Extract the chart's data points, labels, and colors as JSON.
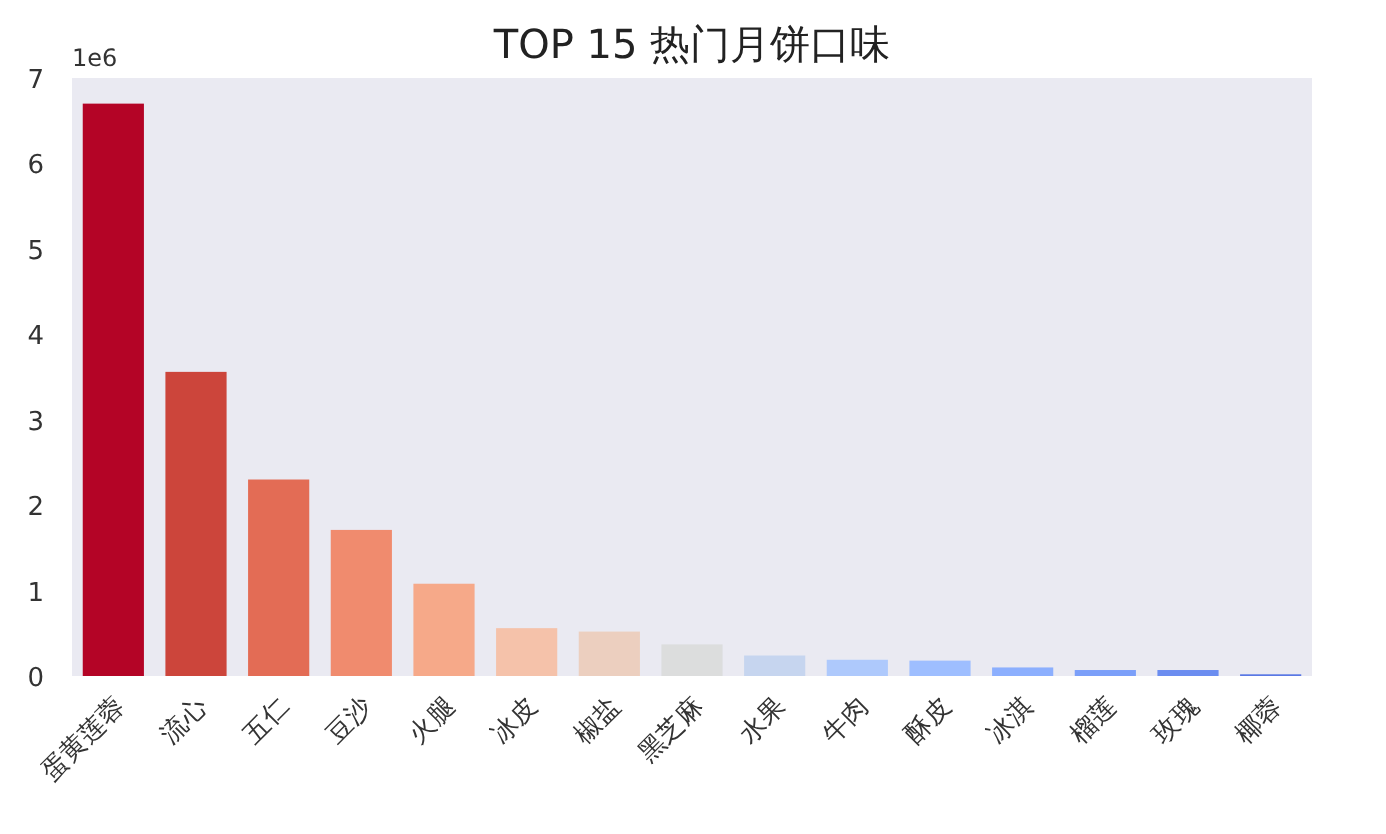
{
  "chart_data": {
    "type": "bar",
    "title": "TOP 15 热门月饼口味",
    "categories": [
      "蛋黄莲蓉",
      "流心",
      "五仁",
      "豆沙",
      "火腿",
      "冰皮",
      "椒盐",
      "黑芝麻",
      "水果",
      "牛肉",
      "酥皮",
      "冰淇",
      "榴莲",
      "玫瑰",
      "椰蓉"
    ],
    "values": [
      6.7,
      3.56,
      2.3,
      1.71,
      1.08,
      0.56,
      0.52,
      0.37,
      0.24,
      0.19,
      0.18,
      0.1,
      0.07,
      0.07,
      0.02
    ],
    "colors": [
      "#b40426",
      "#cc453b",
      "#e36c55",
      "#f08b6e",
      "#f6a989",
      "#f5c2aa",
      "#eccfbf",
      "#dcdddd",
      "#c6d5ef",
      "#aec9fc",
      "#9ebeff",
      "#8caffe",
      "#7b9ff9",
      "#6b8df0",
      "#5a78e4"
    ],
    "ylim": [
      0,
      7
    ],
    "yticks": [
      0,
      1,
      2,
      3,
      4,
      5,
      6,
      7
    ],
    "annotations": [
      "1e6"
    ],
    "grid": false
  }
}
